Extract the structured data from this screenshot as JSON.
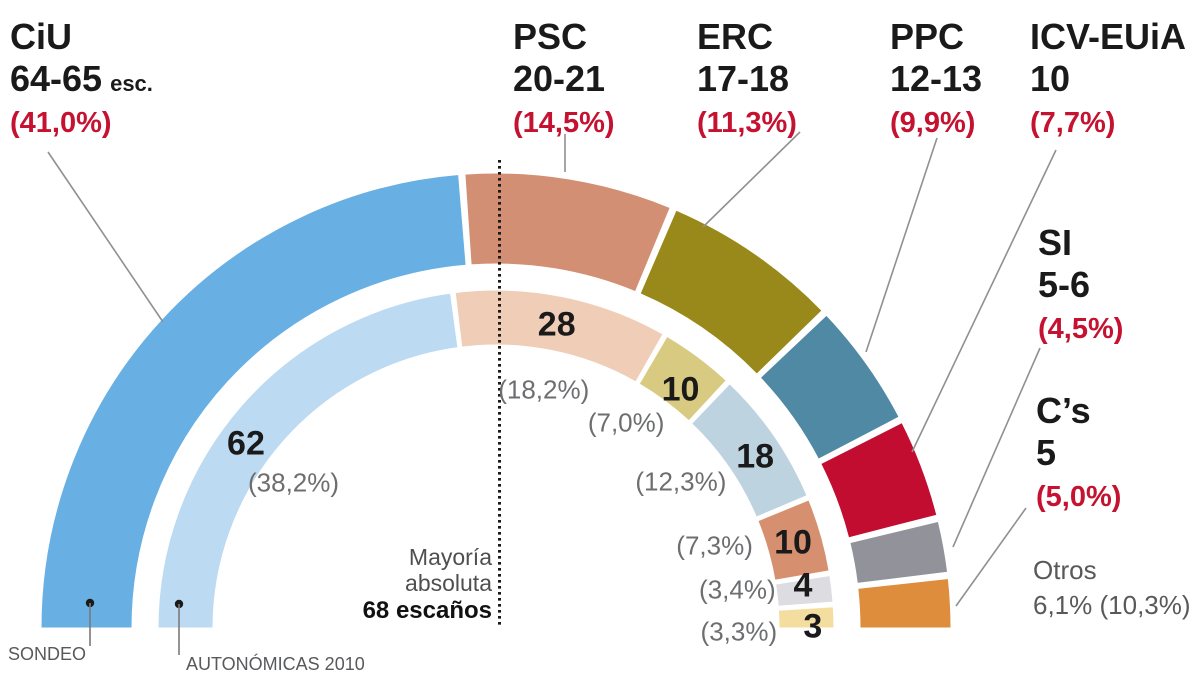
{
  "chart_data": {
    "type": "half_donut",
    "layout_hint": "two concentric half-donut rings spanning 180 degrees; outer ring = poll seat projection, inner ring = 2010 election results; vertical dotted line marks absolute majority at 68 of 135 seats",
    "rings": {
      "outer_legend": "SONDEO",
      "inner_legend": "AUTONÓMICAS 2010",
      "outer_total": 135.5,
      "inner_total": 135
    },
    "majority": {
      "threshold_seats": 68,
      "line1": "Mayoría",
      "line2": "absoluta",
      "line3": "68 escaños"
    },
    "parties": [
      {
        "name": "CiU",
        "poll_seats_label": "64-65",
        "poll_seats_suffix": "esc.",
        "poll_pct_label": "(41,0%)",
        "poll_arc_value": 64.5,
        "poll_color": "#68afe3",
        "prev_seats_label": "62",
        "prev_pct_label": "(38,2%)",
        "prev_arc_value": 62,
        "prev_color": "#bcdaf2"
      },
      {
        "name": "PSC",
        "poll_seats_label": "20-21",
        "poll_seats_suffix": "",
        "poll_pct_label": "(14,5%)",
        "poll_arc_value": 20.5,
        "poll_color": "#d38f73",
        "prev_seats_label": "28",
        "prev_pct_label": "(18,2%)",
        "prev_arc_value": 28,
        "prev_color": "#f0cdb7"
      },
      {
        "name": "ERC",
        "poll_seats_label": "17-18",
        "poll_seats_suffix": "",
        "poll_pct_label": "(11,3%)",
        "poll_arc_value": 17.5,
        "poll_color": "#99891b",
        "prev_seats_label": "10",
        "prev_pct_label": "(7,0%)",
        "prev_arc_value": 10,
        "prev_color": "#d9ca81"
      },
      {
        "name": "PPC",
        "poll_seats_label": "12-13",
        "poll_seats_suffix": "",
        "poll_pct_label": "(9,9%)",
        "poll_arc_value": 12.5,
        "poll_color": "#5089a4",
        "prev_seats_label": "18",
        "prev_pct_label": "(12,3%)",
        "prev_arc_value": 18,
        "prev_color": "#bdd3df"
      },
      {
        "name": "ICV-EUiA",
        "poll_seats_label": "10",
        "poll_seats_suffix": "",
        "poll_pct_label": "(7,7%)",
        "poll_arc_value": 10,
        "poll_color": "#c20d31",
        "prev_seats_label": "10",
        "prev_pct_label": "(7,3%)",
        "prev_arc_value": 10,
        "prev_color": "#d69070"
      },
      {
        "name": "SI",
        "poll_seats_label": "5-6",
        "poll_seats_suffix": "",
        "poll_pct_label": "(4,5%)",
        "poll_arc_value": 5.5,
        "poll_color": "#92929a",
        "prev_seats_label": "4",
        "prev_pct_label": "(3,4%)",
        "prev_arc_value": 4,
        "prev_color": "#dcdce1"
      },
      {
        "name": "C’s",
        "poll_seats_label": "5",
        "poll_seats_suffix": "",
        "poll_pct_label": "(5,0%)",
        "poll_arc_value": 5,
        "poll_color": "#de8d3c",
        "prev_seats_label": "3",
        "prev_pct_label": "(3,3%)",
        "prev_arc_value": 3,
        "prev_color": "#f4de9f"
      }
    ],
    "otros": {
      "name": "Otros",
      "values_line": "6,1%  (10,3%)"
    },
    "colors": {
      "pct_red": "#c41230",
      "gray_text": "#6d6e70",
      "caption_gray": "#58595b",
      "leader_line": "#909090",
      "majority_dots": "#1a1a1a"
    }
  }
}
